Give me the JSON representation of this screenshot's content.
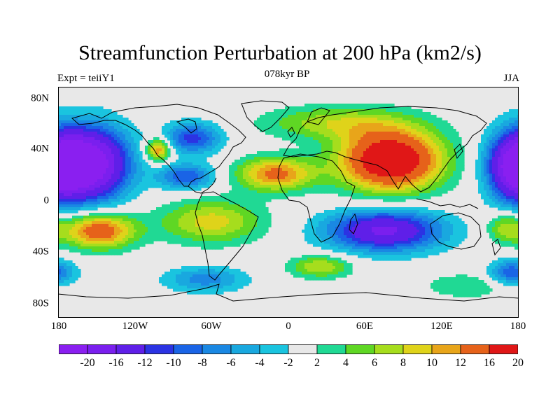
{
  "title": "Streamfunction Perturbation at 200 hPa (km2/s)",
  "left_subtitle": "Expt = teiiY1",
  "center_subtitle": "078kyr BP",
  "right_subtitle": "JJA",
  "latitude_labels": [
    "80N",
    "40N",
    "0",
    "40S",
    "80S"
  ],
  "longitude_labels": [
    "180",
    "120W",
    "60W",
    "0",
    "60E",
    "120E",
    "180"
  ],
  "colorbar": {
    "labels": [
      "-20",
      "-16",
      "-12",
      "-10",
      "-8",
      "-6",
      "-4",
      "-2",
      "2",
      "4",
      "6",
      "8",
      "10",
      "12",
      "16",
      "20"
    ],
    "colors": [
      "#8a1ff0",
      "#7a1fee",
      "#5f1fe8",
      "#2b33e3",
      "#1a64e6",
      "#1a88e3",
      "#19a8df",
      "#1ac4df",
      "#e8e8e8",
      "#20d994",
      "#5fd724",
      "#a6dd1d",
      "#dfd31a",
      "#e8a51a",
      "#e6621a",
      "#e01717"
    ]
  },
  "map": {
    "projection": "cylindrical equidistant",
    "lon_range": [
      -180,
      180
    ],
    "lat_range": [
      -90,
      90
    ],
    "background_color": "#e8e8e8",
    "anomalies": [
      {
        "lon": -155,
        "lat": 30,
        "lon_radius": 30,
        "lat_radius": 28,
        "amplitude": -24
      },
      {
        "lon": 178,
        "lat": 28,
        "lon_radius": 22,
        "lat_radius": 26,
        "amplitude": -20
      },
      {
        "lon": -75,
        "lat": 50,
        "lon_radius": 22,
        "lat_radius": 12,
        "amplitude": -11
      },
      {
        "lon": -80,
        "lat": 20,
        "lon_radius": 22,
        "lat_radius": 10,
        "amplitude": -10
      },
      {
        "lon": -102,
        "lat": 41,
        "lon_radius": 10,
        "lat_radius": 9,
        "amplitude": 13
      },
      {
        "lon": 80,
        "lat": 33,
        "lon_radius": 40,
        "lat_radius": 24,
        "amplitude": 22
      },
      {
        "lon": 35,
        "lat": 62,
        "lon_radius": 55,
        "lat_radius": 13,
        "amplitude": 7
      },
      {
        "lon": -10,
        "lat": 22,
        "lon_radius": 30,
        "lat_radius": 13,
        "amplitude": 13
      },
      {
        "lon": -148,
        "lat": -22,
        "lon_radius": 28,
        "lat_radius": 14,
        "amplitude": 15
      },
      {
        "lon": -60,
        "lat": -15,
        "lon_radius": 40,
        "lat_radius": 17,
        "amplitude": 9
      },
      {
        "lon": 75,
        "lat": -22,
        "lon_radius": 45,
        "lat_radius": 16,
        "amplitude": -17
      },
      {
        "lon": -65,
        "lat": -60,
        "lon_radius": 32,
        "lat_radius": 10,
        "amplitude": -7
      },
      {
        "lon": 25,
        "lat": -50,
        "lon_radius": 24,
        "lat_radius": 9,
        "amplitude": 8
      },
      {
        "lon": 175,
        "lat": -55,
        "lon_radius": 18,
        "lat_radius": 10,
        "amplitude": -10
      },
      {
        "lon": 140,
        "lat": -65,
        "lon_radius": 35,
        "lat_radius": 10,
        "amplitude": 4
      },
      {
        "lon": 170,
        "lat": -20,
        "lon_radius": 15,
        "lat_radius": 12,
        "amplitude": 7
      }
    ]
  }
}
